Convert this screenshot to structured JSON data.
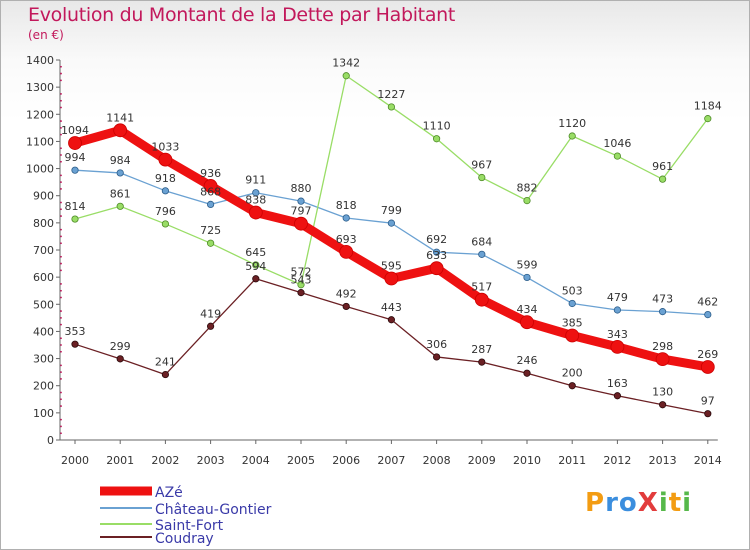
{
  "header": {
    "title": "Evolution du Montant de la Dette par Habitant",
    "unit": "(en €)"
  },
  "logo": {
    "text": "ProXiti"
  },
  "colors": {
    "title": "#c2185b",
    "AZé": "#ee1111",
    "Château-Gontier": "#6aa1d2",
    "Saint-Fort": "#99dd66",
    "Coudray": "#6b2024"
  },
  "chart_data": {
    "type": "line",
    "title": "Evolution du Montant de la Dette par Habitant",
    "ylabel": "(en €)",
    "xlabel": "",
    "ylim": [
      0,
      1400
    ],
    "yticks": [
      0,
      100,
      200,
      300,
      400,
      500,
      600,
      700,
      800,
      900,
      1000,
      1100,
      1200,
      1300,
      1400
    ],
    "grid": false,
    "legend": "bottom-left",
    "categories": [
      "2000",
      "2001",
      "2002",
      "2003",
      "2004",
      "2005",
      "2006",
      "2007",
      "2008",
      "2009",
      "2010",
      "2011",
      "2012",
      "2013",
      "2014"
    ],
    "series": [
      {
        "name": "AZé",
        "values": [
          1094,
          1141,
          1033,
          936,
          838,
          797,
          693,
          595,
          633,
          517,
          434,
          385,
          343,
          298,
          269
        ]
      },
      {
        "name": "Château-Gontier",
        "values": [
          994,
          984,
          918,
          868,
          911,
          880,
          818,
          799,
          692,
          684,
          599,
          503,
          479,
          473,
          462
        ]
      },
      {
        "name": "Saint-Fort",
        "values": [
          814,
          861,
          796,
          725,
          645,
          572,
          1342,
          1227,
          1110,
          967,
          882,
          1120,
          1046,
          961,
          1184
        ]
      },
      {
        "name": "Coudray",
        "values": [
          353,
          299,
          241,
          419,
          594,
          543,
          492,
          443,
          306,
          287,
          246,
          200,
          163,
          130,
          97
        ]
      }
    ]
  }
}
